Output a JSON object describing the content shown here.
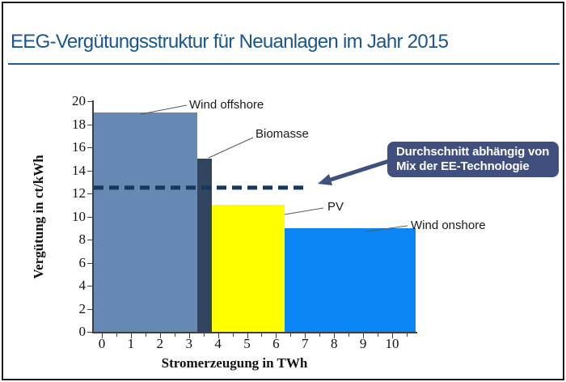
{
  "slide": {
    "title": "EEG-Vergütungsstruktur für Neuanlagen im Jahr 2015"
  },
  "colors": {
    "title_text": "#19568F",
    "title_rule": "#1F5C99",
    "axis": "#3F3F3F",
    "average_line": "#17375D",
    "callout_bg": "#404F7D",
    "callout_text": "#FFFFFF",
    "leader_line": "#595959"
  },
  "chart_data": {
    "type": "bar",
    "variant": "variable-width-columns",
    "title": "",
    "xlabel": "Stromerzeugung in TWh",
    "ylabel": "Vergütung in ct/kWh",
    "xlim": [
      0,
      10.8
    ],
    "ylim": [
      0,
      20
    ],
    "x_tick_step": 1,
    "x_minor_tick_step": 0.5,
    "x_tick_max_label": 10,
    "y_tick_step": 2,
    "grid": false,
    "legend": "inline leader-line labels",
    "value_unit": "ct/kWh",
    "width_unit": "TWh",
    "series": [
      {
        "name": "Wind offshore",
        "x_from": 0,
        "x_to": 3.3,
        "value": 19,
        "color": "#6589B2"
      },
      {
        "name": "Biomasse",
        "x_from": 3.3,
        "x_to": 3.8,
        "value": 15,
        "color": "#31455E"
      },
      {
        "name": "PV",
        "x_from": 3.8,
        "x_to": 6.3,
        "value": 11,
        "color": "#FFFF00"
      },
      {
        "name": "Wind onshore",
        "x_from": 6.3,
        "x_to": 10.8,
        "value": 9,
        "color": "#0C86F5"
      }
    ],
    "average_line": {
      "value": 12.5,
      "style": "dashed",
      "color": "#17375D",
      "x_from": 0,
      "x_to": 7.1
    },
    "callout": {
      "line1": "Durchschnitt abhängig von",
      "line2": "Mix der EE-Technologie"
    }
  }
}
